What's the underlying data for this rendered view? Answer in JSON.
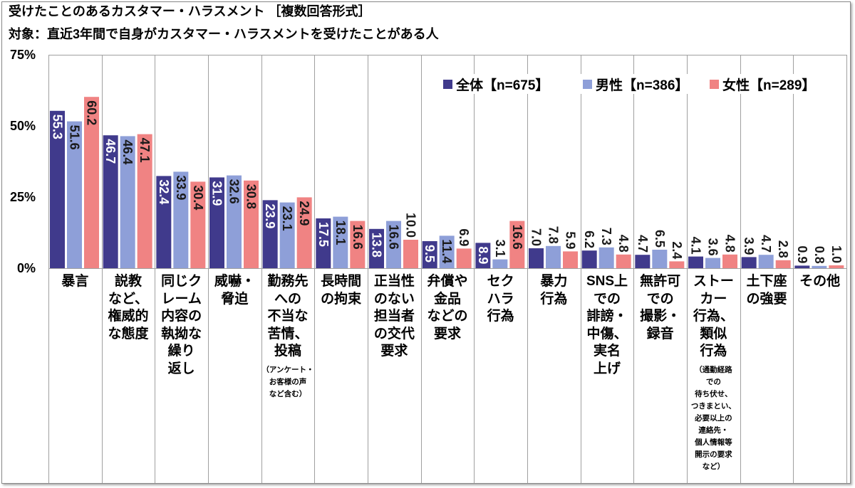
{
  "chart_data": {
    "type": "bar",
    "title": "受けたことのあるカスタマー・ハラスメント ［複数回答形式］",
    "subtitle": "対象：直近3年間で自身がカスタマー・ハラスメントを受けたことがある人",
    "ylim": [
      0,
      75
    ],
    "yticks": [
      0,
      25,
      50,
      75
    ],
    "ytick_labels": [
      "0%",
      "25%",
      "50%",
      "75%"
    ],
    "categories": [
      "暴言",
      "説教\nなど、\n権威的\nな態度",
      "同じク\nレーム\n内容の\n執拗な\n繰り\n返し",
      "威嚇・\n脅迫",
      "勤務先\nへの\n不当な\n苦情、\n投稿",
      "長時間\nの拘束",
      "正当性\nのない\n担当者\nの交代\n要求",
      "弁償や\n金品\nなどの\n要求",
      "セク\nハラ\n行為",
      "暴力\n行為",
      "SNS上\nでの\n誹謗・\n中傷、\n実名\n上げ",
      "無許可\nでの\n撮影・\n録音",
      "ストー\nカー\n行為、\n類似\n行為",
      "土下座\nの強要",
      "その他"
    ],
    "category_notes": [
      "",
      "",
      "",
      "",
      "（アンケート・\nお客様の声\nなど含む）",
      "",
      "",
      "",
      "",
      "",
      "",
      "",
      "（通勤経路\nでの\n待ち伏せ、\nつきまとい、\n必要以上の\n連絡先・\n個人情報等\n開示の要求\nなど）",
      "",
      ""
    ],
    "series": [
      {
        "name": "全体【n=675】",
        "color": "#403a8c",
        "label_color": "#ffffff",
        "values": [
          55.3,
          46.7,
          32.4,
          31.9,
          23.9,
          17.5,
          13.8,
          9.5,
          8.9,
          7.0,
          6.2,
          4.7,
          4.1,
          3.9,
          0.9
        ]
      },
      {
        "name": "男性【n=386】",
        "color": "#8e9fd8",
        "label_color": "#1a1a1a",
        "values": [
          51.6,
          46.4,
          33.9,
          32.6,
          23.1,
          18.1,
          16.6,
          11.4,
          3.1,
          7.8,
          7.3,
          6.5,
          3.6,
          4.7,
          0.8
        ]
      },
      {
        "name": "女性【n=289】",
        "color": "#f08383",
        "label_color": "#1a1a1a",
        "values": [
          60.2,
          47.1,
          30.4,
          30.8,
          24.9,
          16.6,
          10.0,
          6.9,
          16.6,
          5.9,
          4.8,
          2.4,
          4.8,
          2.8,
          1.0
        ]
      }
    ],
    "legend_position": "top-right",
    "grid": false
  }
}
